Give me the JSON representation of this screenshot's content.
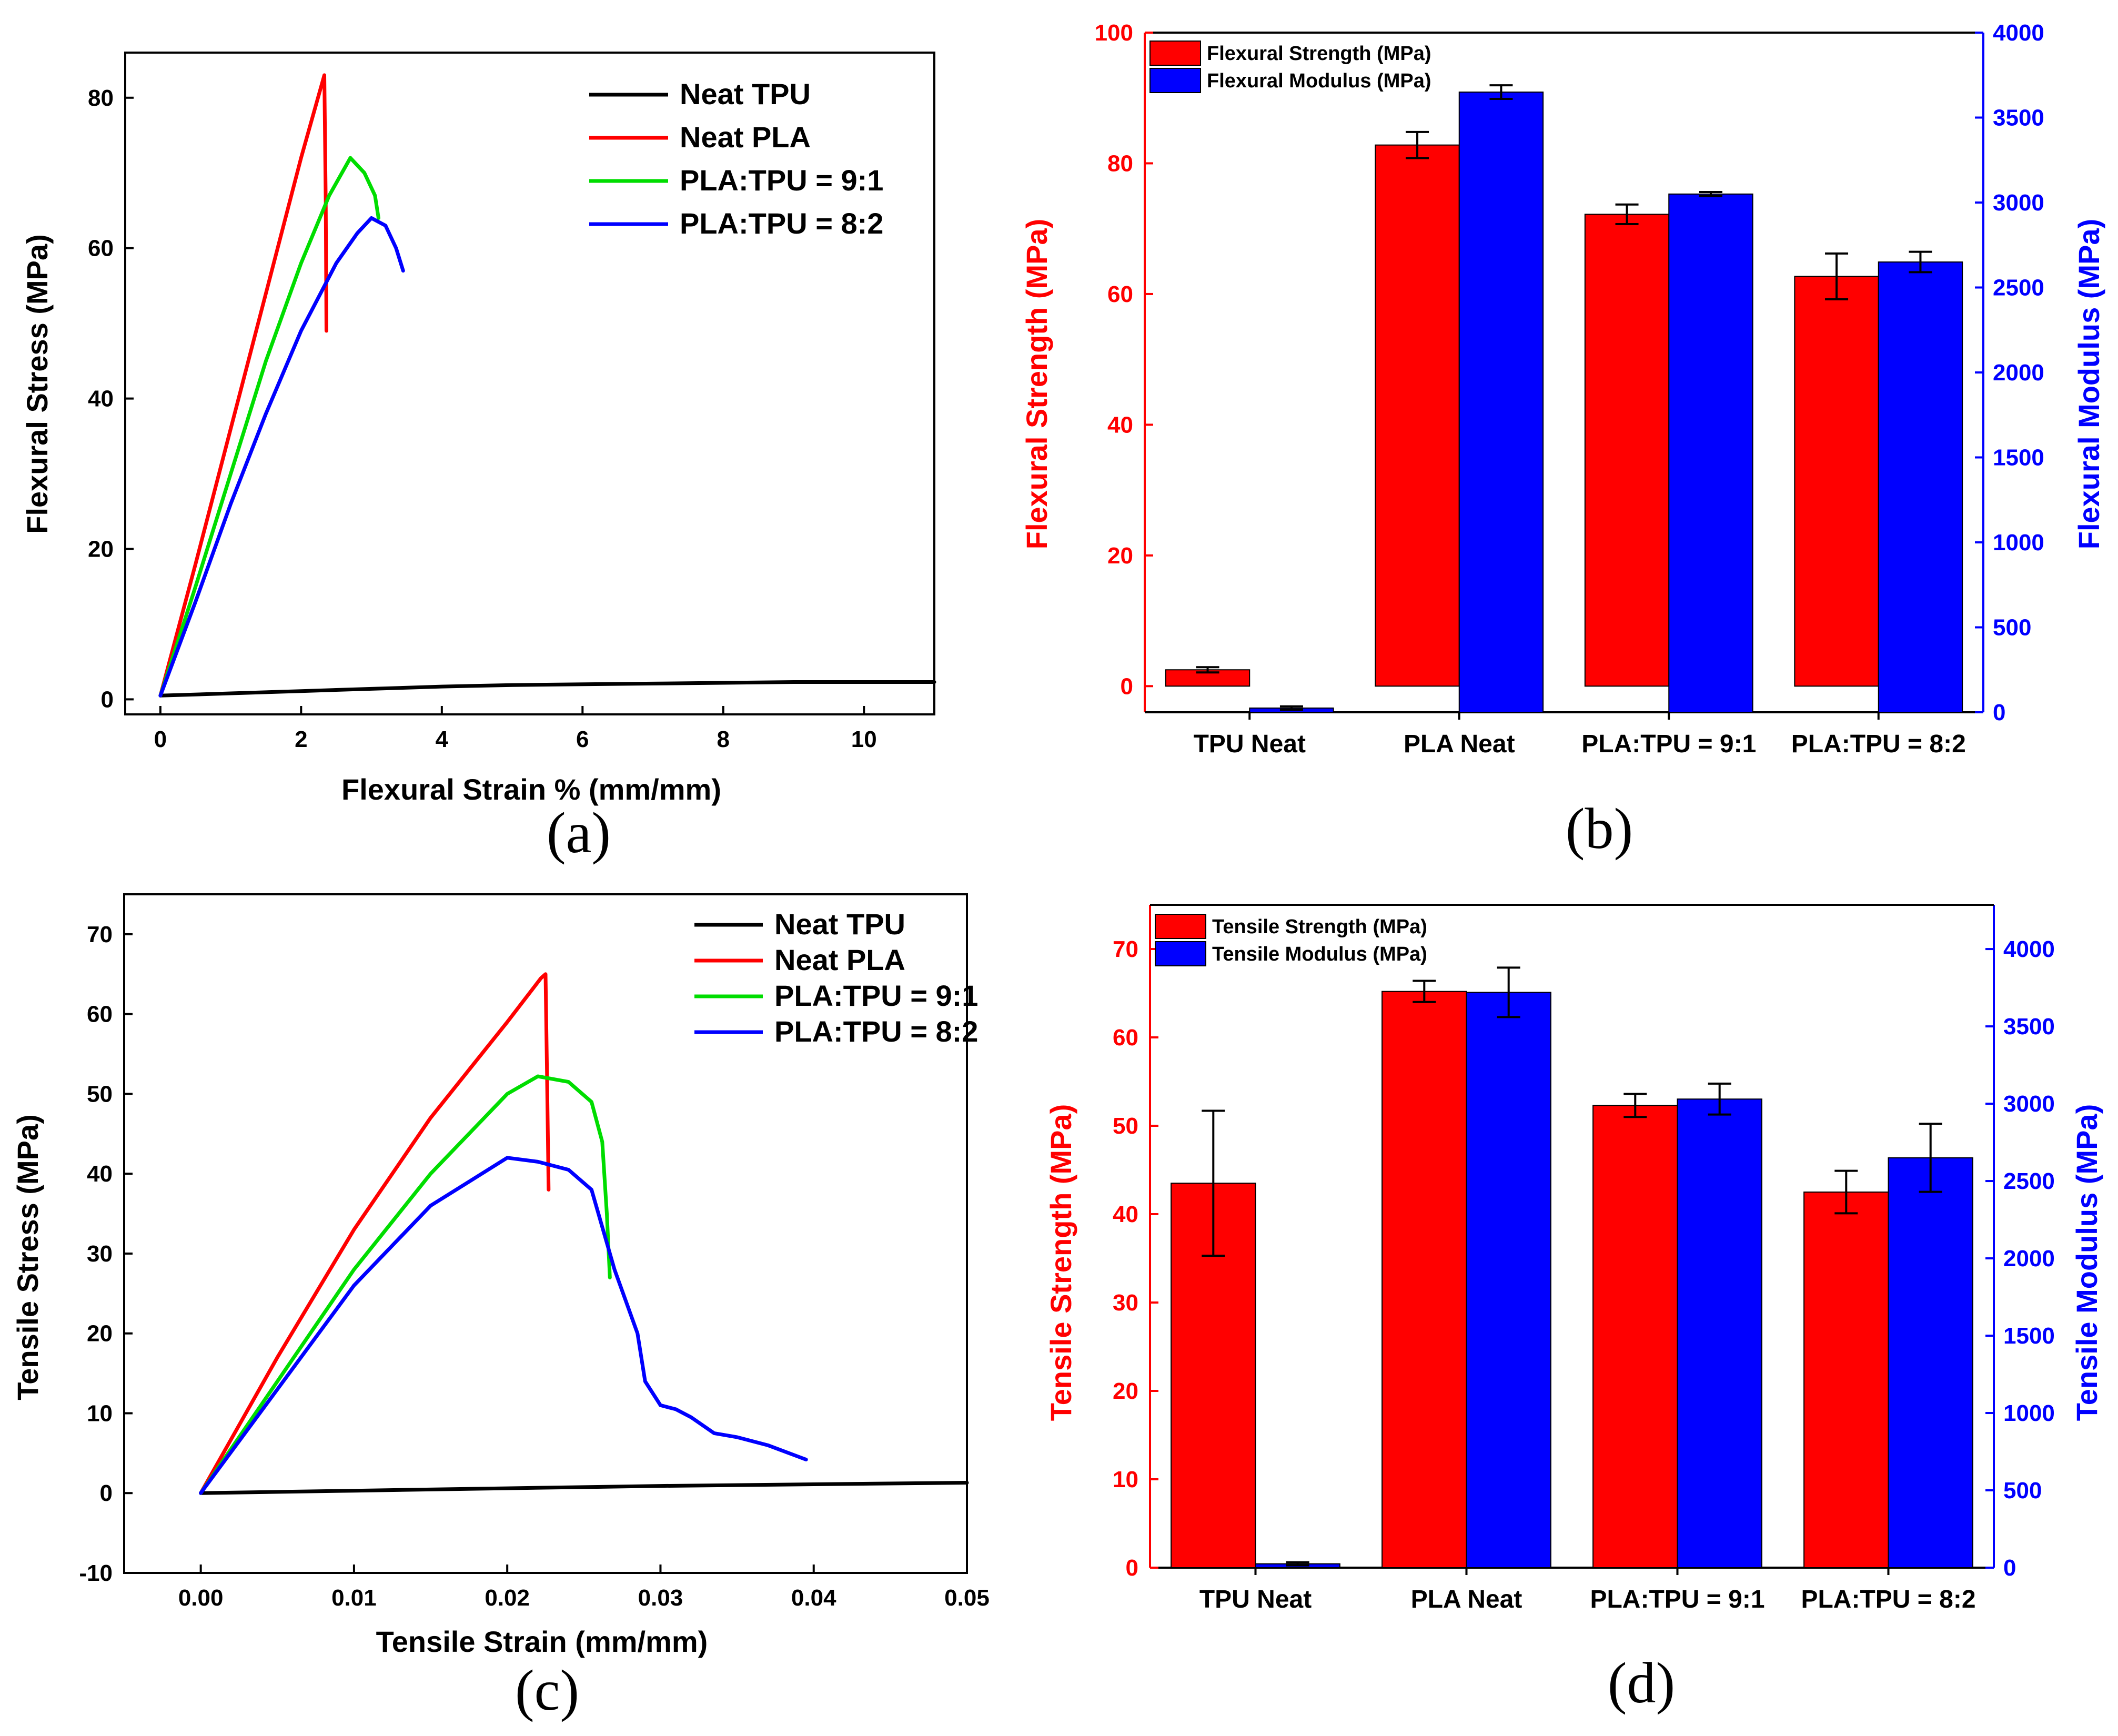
{
  "chart_data": [
    {
      "id": "a",
      "type": "line",
      "panel_label": "(a)",
      "xlabel": "Flexural Strain % (mm/mm)",
      "ylabel": "Flexural Stress (MPa)",
      "xlim": [
        -0.5,
        11
      ],
      "ylim": [
        -2,
        86
      ],
      "xticks": [
        0,
        2,
        4,
        6,
        8,
        10
      ],
      "yticks": [
        0,
        20,
        40,
        60,
        80
      ],
      "xtick_labels": [
        "0",
        "2",
        "4",
        "6",
        "8",
        "10"
      ],
      "ytick_labels": [
        "0",
        "20",
        "40",
        "60",
        "80"
      ],
      "legend_position": "top-right",
      "series": [
        {
          "name": "Neat TPU",
          "color": "#000000",
          "x": [
            0,
            1,
            2,
            3,
            4,
            5,
            6,
            7,
            8,
            9,
            10,
            11
          ],
          "y": [
            0.5,
            0.8,
            1.1,
            1.4,
            1.7,
            1.9,
            2.0,
            2.1,
            2.2,
            2.3,
            2.3,
            2.3
          ]
        },
        {
          "name": "Neat PLA",
          "color": "#ff0000",
          "x": [
            0,
            0.5,
            1.0,
            1.5,
            2.0,
            2.33,
            2.35,
            2.36
          ],
          "y": [
            0.5,
            18,
            36,
            54,
            72,
            83,
            66,
            49
          ]
        },
        {
          "name": "PLA:TPU = 9:1",
          "color": "#00dd00",
          "x": [
            0,
            0.5,
            1.0,
            1.5,
            2.0,
            2.4,
            2.7,
            2.9,
            3.05,
            3.1
          ],
          "y": [
            0.5,
            15,
            30,
            45,
            58,
            67,
            72,
            70,
            67,
            64
          ]
        },
        {
          "name": "PLA:TPU = 8:2",
          "color": "#0000ff",
          "x": [
            0,
            0.5,
            1.0,
            1.5,
            2.0,
            2.5,
            2.8,
            3.0,
            3.2,
            3.35,
            3.45
          ],
          "y": [
            0.5,
            13,
            26,
            38,
            49,
            58,
            62,
            64,
            63,
            60,
            57
          ]
        }
      ]
    },
    {
      "id": "b",
      "type": "bar",
      "panel_label": "(b)",
      "categories": [
        "TPU Neat",
        "PLA Neat",
        "PLA:TPU = 9:1",
        "PLA:TPU = 8:2"
      ],
      "ylabel": "Flexural Strength (MPa)",
      "ylabel_right": "Flexural Modulus (MPa)",
      "ylim": [
        -4,
        100
      ],
      "ylim_right": [
        0,
        4000
      ],
      "yticks": [
        0,
        20,
        40,
        60,
        80,
        100
      ],
      "ytick_labels": [
        "0",
        "20",
        "40",
        "60",
        "80",
        "100"
      ],
      "yticks_right": [
        0,
        500,
        1000,
        1500,
        2000,
        2500,
        3000,
        3500,
        4000
      ],
      "ytick_labels_right": [
        "0",
        "500",
        "1000",
        "1500",
        "2000",
        "2500",
        "3000",
        "3500",
        "4000"
      ],
      "left_axis_color": "#ff0000",
      "right_axis_color": "#0000ff",
      "legend_position": "top-left",
      "series": [
        {
          "name": "Flexural Strength (MPa)",
          "color": "#ff0000",
          "axis": "left",
          "values": [
            2.5,
            82.8,
            72.2,
            62.7
          ],
          "errors": [
            0.4,
            2.0,
            1.5,
            3.5
          ]
        },
        {
          "name": "Flexural Modulus (MPa)",
          "color": "#0000ff",
          "axis": "right",
          "values": [
            25,
            3650,
            3050,
            2650
          ],
          "errors": [
            10,
            40,
            12,
            60
          ]
        }
      ]
    },
    {
      "id": "c",
      "type": "line",
      "panel_label": "(c)",
      "xlabel": "Tensile Strain (mm/mm)",
      "ylabel": "Tensile Stress (MPa)",
      "xlim": [
        -0.005,
        0.05
      ],
      "ylim": [
        -10,
        75
      ],
      "xticks": [
        0.0,
        0.01,
        0.02,
        0.03,
        0.04,
        0.05
      ],
      "yticks": [
        -10,
        0,
        10,
        20,
        30,
        40,
        50,
        60,
        70
      ],
      "xtick_labels": [
        "0.00",
        "0.01",
        "0.02",
        "0.03",
        "0.04",
        "0.05"
      ],
      "ytick_labels": [
        "-10",
        "0",
        "10",
        "20",
        "30",
        "40",
        "50",
        "60",
        "70"
      ],
      "legend_position": "top-right",
      "series": [
        {
          "name": "Neat TPU",
          "color": "#000000",
          "x": [
            0,
            0.01,
            0.02,
            0.03,
            0.04,
            0.05
          ],
          "y": [
            0.0,
            0.3,
            0.6,
            0.9,
            1.1,
            1.3
          ]
        },
        {
          "name": "Neat PLA",
          "color": "#ff0000",
          "x": [
            0,
            0.005,
            0.01,
            0.015,
            0.02,
            0.0222,
            0.0225,
            0.0226,
            0.0227
          ],
          "y": [
            0,
            17,
            33,
            47,
            59,
            64.5,
            65,
            52,
            38
          ]
        },
        {
          "name": "PLA:TPU = 9:1",
          "color": "#00dd00",
          "x": [
            0,
            0.005,
            0.01,
            0.015,
            0.02,
            0.022,
            0.024,
            0.0255,
            0.0262,
            0.0265,
            0.0267
          ],
          "y": [
            0,
            14,
            28,
            40,
            50,
            52.2,
            51.5,
            49,
            44,
            35,
            27
          ]
        },
        {
          "name": "PLA:TPU = 8:2",
          "color": "#0000ff",
          "x": [
            0,
            0.005,
            0.01,
            0.015,
            0.02,
            0.022,
            0.024,
            0.0255,
            0.027,
            0.0285,
            0.029,
            0.03,
            0.031,
            0.032,
            0.0335,
            0.035,
            0.037,
            0.0395
          ],
          "y": [
            0,
            13,
            26,
            36,
            42,
            41.5,
            40.5,
            38,
            28,
            20,
            14,
            11,
            10.5,
            9.5,
            7.5,
            7,
            6,
            4.2
          ]
        }
      ]
    },
    {
      "id": "d",
      "type": "bar",
      "panel_label": "(d)",
      "categories": [
        "TPU Neat",
        "PLA Neat",
        "PLA:TPU = 9:1",
        "PLA:TPU = 8:2"
      ],
      "ylabel": "Tensile Strength (MPa)",
      "ylabel_right": "Tensile Modulus (MPa)",
      "ylim": [
        0,
        75
      ],
      "ylim_right": [
        0,
        4286
      ],
      "yticks": [
        0,
        10,
        20,
        30,
        40,
        50,
        60,
        70
      ],
      "ytick_labels": [
        "0",
        "10",
        "20",
        "30",
        "40",
        "50",
        "60",
        "70"
      ],
      "yticks_right": [
        0,
        500,
        1000,
        1500,
        2000,
        2500,
        3000,
        3500,
        4000
      ],
      "ytick_labels_right": [
        "0",
        "500",
        "1000",
        "1500",
        "2000",
        "2500",
        "3000",
        "3500",
        "4000"
      ],
      "left_axis_color": "#ff0000",
      "right_axis_color": "#0000ff",
      "legend_position": "top-left",
      "series": [
        {
          "name": "Tensile Strength (MPa)",
          "color": "#ff0000",
          "axis": "left",
          "values": [
            43.5,
            65.2,
            52.3,
            42.5
          ],
          "errors": [
            8.2,
            1.2,
            1.3,
            2.4
          ]
        },
        {
          "name": "Tensile Modulus (MPa)",
          "color": "#0000ff",
          "axis": "right",
          "values": [
            25,
            3720,
            3030,
            2650
          ],
          "errors": [
            10,
            160,
            100,
            220
          ]
        }
      ]
    }
  ]
}
